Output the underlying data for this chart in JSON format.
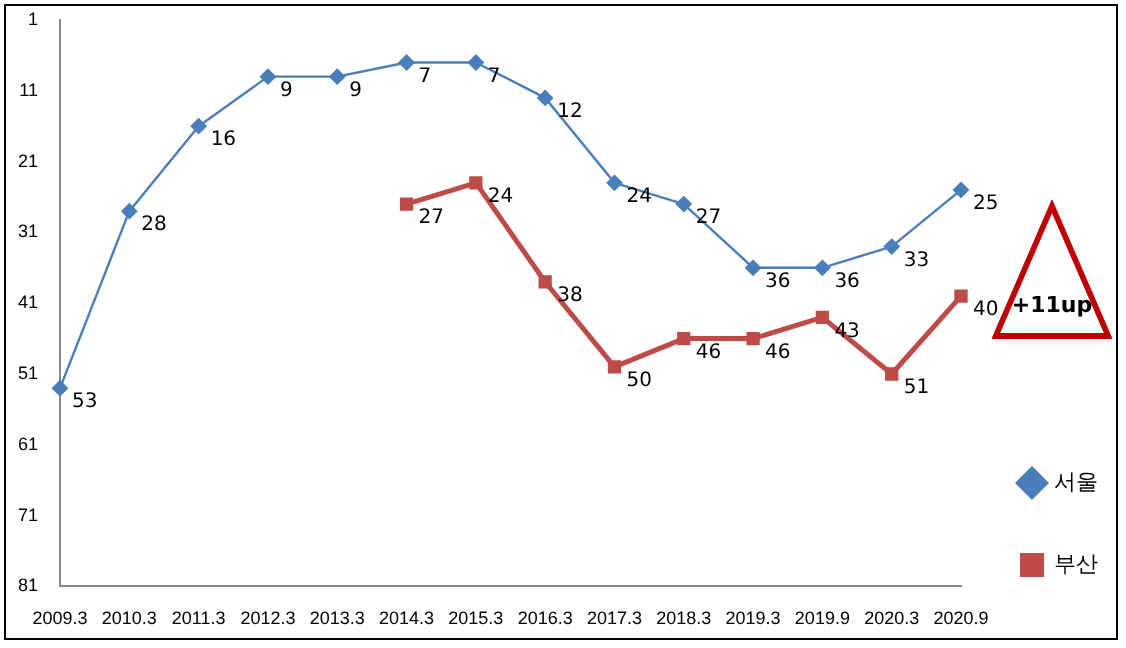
{
  "chart_data": {
    "type": "line",
    "categories": [
      "2009.3",
      "2010.3",
      "2011.3",
      "2012.3",
      "2013.3",
      "2014.3",
      "2015.3",
      "2016.3",
      "2017.3",
      "2018.3",
      "2019.3",
      "2019.9",
      "2020.3",
      "2020.9"
    ],
    "series": [
      {
        "name": "서울",
        "color": "#4a7ebb",
        "marker": "diamond",
        "values": [
          53,
          28,
          16,
          9,
          9,
          7,
          7,
          12,
          24,
          27,
          36,
          36,
          33,
          25
        ]
      },
      {
        "name": "부산",
        "color": "#be4b48",
        "marker": "square",
        "values": [
          null,
          null,
          null,
          null,
          null,
          27,
          24,
          38,
          50,
          46,
          46,
          43,
          51,
          40
        ]
      }
    ],
    "ylim": [
      81,
      1
    ],
    "yticks": [
      1,
      11,
      21,
      31,
      41,
      51,
      61,
      71,
      81
    ],
    "grid": false,
    "legend": "right",
    "data_labels": true,
    "line_style": "solid",
    "annotations": [
      "+11up"
    ]
  }
}
